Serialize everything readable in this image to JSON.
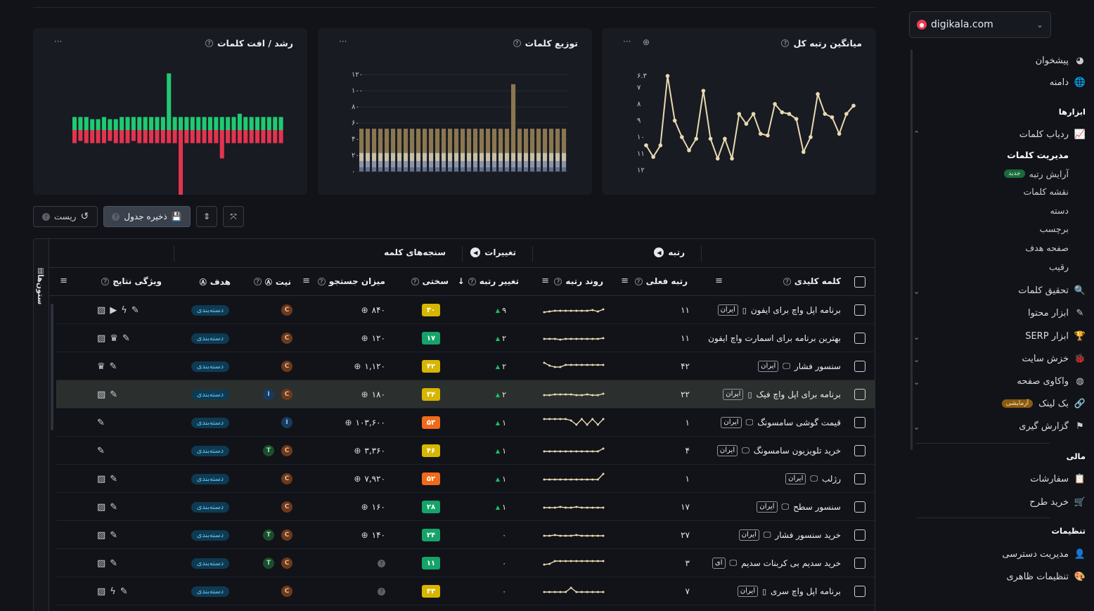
{
  "sidebar": {
    "domain": "digikala.com",
    "items": {
      "dashboard": "پیشخوان",
      "domain": "دامنه",
      "tools_head": "ابزارها",
      "rank_tracker": "ردیاب کلمات",
      "manage_keywords": "مدیریت کلمات",
      "rank_arrange": "آرایش رتبه",
      "new_badge": "جدید",
      "keyword_map": "نقشه کلمات",
      "category": "دسته",
      "tag": "برچسب",
      "target_page": "صفحه هدف",
      "competitor": "رقیب",
      "keyword_research": "تحقیق کلمات",
      "content_tools": "ابزار محتوا",
      "serp_tools": "ابزار SERP",
      "site_crawl": "خزش سایت",
      "page_audit": "واکاوی صفحه",
      "backlink": "بک لینک",
      "exp_badge": "آزمایشی",
      "reporting": "گزارش گیری",
      "finance_head": "مالی",
      "orders": "سفارشات",
      "buy_plan": "خرید طرح",
      "settings_head": "تنظیمات",
      "access": "مدیریت دسترسی",
      "appearance": "تنظیمات ظاهری"
    }
  },
  "cards": {
    "avg_rank": {
      "title": "میانگین رتبه کل",
      "dots": "···"
    },
    "distribution": {
      "title": "توزیع کلمات",
      "dots": "···"
    },
    "growth": {
      "title": "رشد / افت کلمات",
      "dots": "···"
    }
  },
  "chart_data": [
    {
      "type": "line",
      "title": "میانگین رتبه کل",
      "y_ticks": [
        "۶.۳",
        "۷",
        "۸",
        "۹",
        "۱۰",
        "۱۱",
        "۱۲"
      ],
      "y_tick_values": [
        6.3,
        7,
        8,
        9,
        10,
        11,
        12
      ],
      "ylim": [
        6.3,
        12
      ],
      "y_inverted": true,
      "values": [
        10.5,
        11.2,
        10.5,
        6.3,
        9.0,
        10.0,
        10.8,
        10.1,
        7.2,
        10.1,
        11.3,
        10.1,
        11.3,
        8.6,
        9.2,
        8.6,
        9.8,
        9.9,
        8.0,
        8.5,
        8.6,
        8.9,
        10.9,
        10.0,
        7.4,
        8.6,
        8.8,
        9.8,
        8.6,
        8.1
      ],
      "color": "#e8d9b0"
    },
    {
      "type": "bar",
      "title": "توزیع کلمات",
      "stacked": true,
      "y_ticks": [
        "۰",
        "۲۰",
        "۴۰",
        "۶۰",
        "۸۰",
        "۱۰۰",
        "۱۲۰"
      ],
      "y_tick_values": [
        0,
        20,
        40,
        60,
        80,
        100,
        120
      ],
      "ylim": [
        0,
        120
      ],
      "series": [
        {
          "color": "#5f7090",
          "values": [
            5,
            5,
            5,
            5,
            5,
            5,
            5,
            5,
            5,
            5,
            5,
            5,
            5,
            5,
            5,
            5,
            5,
            5,
            5,
            5,
            5,
            5,
            5,
            5,
            5,
            5,
            5,
            5,
            5,
            5,
            5,
            5,
            5
          ]
        },
        {
          "color": "#8b93a8",
          "values": [
            8,
            8,
            8,
            8,
            8,
            8,
            8,
            8,
            8,
            8,
            8,
            8,
            8,
            8,
            8,
            8,
            8,
            8,
            8,
            8,
            8,
            8,
            8,
            8,
            8,
            8,
            8,
            8,
            8,
            8,
            8,
            8,
            8
          ]
        },
        {
          "color": "#c6c0a8",
          "values": [
            10,
            10,
            10,
            10,
            10,
            10,
            10,
            10,
            10,
            10,
            10,
            10,
            10,
            10,
            10,
            10,
            10,
            10,
            10,
            10,
            10,
            10,
            10,
            10,
            10,
            10,
            10,
            10,
            10,
            10,
            10,
            10,
            10
          ]
        },
        {
          "color": "#8a7650",
          "values": [
            30,
            30,
            30,
            30,
            30,
            30,
            30,
            30,
            30,
            30,
            30,
            30,
            30,
            30,
            30,
            30,
            30,
            30,
            30,
            30,
            30,
            30,
            30,
            30,
            85,
            30,
            30,
            30,
            30,
            30,
            30,
            30,
            30
          ]
        }
      ]
    },
    {
      "type": "bar",
      "title": "رشد / افت کلمات",
      "positive_color": "#1fca72",
      "negative_color": "#e3344f",
      "positive": [
        12,
        12,
        12,
        10,
        10,
        12,
        10,
        10,
        12,
        12,
        12,
        12,
        12,
        12,
        12,
        12,
        52,
        12,
        12,
        12,
        12,
        12,
        12,
        12,
        12,
        12,
        12,
        12,
        15,
        12,
        12,
        12,
        12,
        12,
        12,
        12
      ],
      "negative": [
        12,
        10,
        12,
        12,
        12,
        12,
        10,
        12,
        12,
        12,
        10,
        12,
        12,
        12,
        12,
        12,
        12,
        12,
        60,
        12,
        12,
        12,
        12,
        12,
        12,
        26,
        12,
        12,
        12,
        12,
        12,
        12,
        12,
        12,
        12,
        12
      ]
    }
  ],
  "toolbar": {
    "reset": "ریست",
    "save": "ذخیره جدول"
  },
  "table": {
    "columns_tab": "ستون‌ها",
    "groups": {
      "rank": "رتبه",
      "changes": "تغییرات",
      "metrics": "سنجه‌های کلمه"
    },
    "headers": {
      "keyword": "کلمه کلیدی",
      "current_rank": "رتبه فعلی",
      "rank_trend": "روند رتبه",
      "rank_change": "تغییر رتبه",
      "difficulty": "سختی",
      "volume": "میزان جستجو",
      "intent": "نیت",
      "target": "هدف",
      "features": "ویژگی نتایج"
    },
    "rows": [
      {
        "keyword": "برنامه اپل واچ برای ایفون",
        "country": "ایران",
        "device": "mobile",
        "rank": "۱۱",
        "change": "۹",
        "dir": "up",
        "kd": "۳۰",
        "kd_color": "#d7b600",
        "volume": "۸۴۰",
        "intents": [
          "C"
        ],
        "target": "دسته‌بندی",
        "features": [
          "pencil",
          "bolt",
          "video",
          "image"
        ],
        "trend": [
          14,
          13,
          12,
          12,
          12,
          12,
          12,
          12,
          12,
          11,
          13,
          10
        ]
      },
      {
        "keyword": "بهترین برنامه برای اسمارت واچ ایفون",
        "country": "",
        "device": "",
        "rank": "۱۱",
        "change": "۲",
        "dir": "up",
        "kd": "۱۷",
        "kd_color": "#16a36a",
        "volume": "۱۲۰",
        "intents": [
          "C"
        ],
        "target": "دسته‌بندی",
        "features": [
          "pencil",
          "crown",
          "image"
        ],
        "trend": [
          12,
          12,
          12,
          13,
          12,
          12,
          12,
          12,
          12,
          12,
          12,
          11
        ]
      },
      {
        "keyword": "سنسور فشار",
        "country": "ایران",
        "device": "desktop",
        "rank": "۴۲",
        "change": "۲",
        "dir": "up",
        "kd": "۴۲",
        "kd_color": "#d7b600",
        "volume": "۱,۱۲۰",
        "intents": [
          "C"
        ],
        "target": "دسته‌بندی",
        "features": [
          "pencil",
          "crown"
        ],
        "trend": [
          6,
          10,
          12,
          12,
          9,
          9,
          9,
          9,
          9,
          9,
          9,
          9
        ]
      },
      {
        "keyword": "برنامه برای اپل واچ فیک",
        "country": "ایران",
        "device": "mobile",
        "rank": "۲۲",
        "change": "۲",
        "dir": "up",
        "kd": "۳۴",
        "kd_color": "#d7b600",
        "volume": "۱۸۰",
        "intents": [
          "C",
          "I"
        ],
        "target": "دسته‌بندی",
        "features": [
          "pencil",
          "image"
        ],
        "trend": [
          12,
          12,
          11,
          11,
          11,
          11,
          12,
          12,
          11,
          12,
          12,
          10
        ]
      },
      {
        "keyword": "قیمت گوشی سامسونگ",
        "country": "ایران",
        "device": "desktop",
        "rank": "۱",
        "change": "۱",
        "dir": "up",
        "kd": "۵۳",
        "kd_color": "#ef6a1a",
        "volume": "۱۰۳,۶۰۰",
        "intents": [
          "I"
        ],
        "target": "دسته‌بندی",
        "features": [
          "pencil"
        ],
        "trend": [
          6,
          6,
          6,
          6,
          6,
          8,
          14,
          6,
          14,
          6,
          14,
          6
        ]
      },
      {
        "keyword": "خرید تلویزیون سامسونگ",
        "country": "ایران",
        "device": "desktop",
        "rank": "۴",
        "change": "۱",
        "dir": "up",
        "kd": "۴۶",
        "kd_color": "#d7b600",
        "volume": "۳,۳۶۰",
        "intents": [
          "C",
          "T"
        ],
        "target": "دسته‌بندی",
        "features": [
          "pencil"
        ],
        "trend": [
          12,
          12,
          12,
          12,
          12,
          12,
          12,
          12,
          12,
          12,
          12,
          8
        ]
      },
      {
        "keyword": "رژلب",
        "country": "ایران",
        "device": "desktop",
        "rank": "۱",
        "change": "۱",
        "dir": "up",
        "kd": "۵۲",
        "kd_color": "#ef6a1a",
        "volume": "۷,۹۲۰",
        "intents": [
          "C"
        ],
        "target": "دسته‌بندی",
        "features": [
          "pencil",
          "image"
        ],
        "trend": [
          12,
          12,
          12,
          12,
          12,
          12,
          12,
          12,
          12,
          12,
          12,
          4
        ]
      },
      {
        "keyword": "سنسور سطح",
        "country": "ایران",
        "device": "desktop",
        "rank": "۱۷",
        "change": "۱",
        "dir": "up",
        "kd": "۲۸",
        "kd_color": "#16a36a",
        "volume": "۱۶۰",
        "intents": [
          "C"
        ],
        "target": "دسته‌بندی",
        "features": [
          "pencil",
          "image"
        ],
        "trend": [
          12,
          12,
          12,
          11,
          12,
          12,
          11,
          12,
          12,
          12,
          12,
          12
        ]
      },
      {
        "keyword": "خرید سنسور فشار",
        "country": "ایران",
        "device": "desktop",
        "rank": "۲۷",
        "change": "۰",
        "dir": "none",
        "kd": "۲۴",
        "kd_color": "#16a36a",
        "volume": "۱۴۰",
        "intents": [
          "C",
          "T"
        ],
        "target": "دسته‌بندی",
        "features": [
          "pencil",
          "image"
        ],
        "trend": [
          12,
          12,
          11,
          12,
          12,
          12,
          11,
          12,
          12,
          12,
          12,
          12
        ]
      },
      {
        "keyword": "خرید سدیم بی کربنات سدیم",
        "country": "ای",
        "device": "desktop",
        "rank": "۳",
        "change": "۰",
        "dir": "none",
        "kd": "۱۱",
        "kd_color": "#16a36a",
        "volume": "",
        "intents": [
          "C",
          "T"
        ],
        "target": "دسته‌بندی",
        "features": [
          "pencil",
          "image"
        ],
        "trend": [
          13,
          12,
          8,
          8,
          8,
          8,
          8,
          8,
          8,
          8,
          8,
          8
        ]
      },
      {
        "keyword": "برنامه اپل واچ سری",
        "country": "ایران",
        "device": "mobile",
        "rank": "۷",
        "change": "۰",
        "dir": "none",
        "kd": "۳۳",
        "kd_color": "#d7b600",
        "volume": "",
        "intents": [
          "C"
        ],
        "target": "دسته‌بندی",
        "features": [
          "pencil",
          "bolt",
          "image"
        ],
        "trend": [
          12,
          12,
          12,
          12,
          12,
          6,
          12,
          12,
          12,
          12,
          12,
          12
        ]
      }
    ]
  }
}
